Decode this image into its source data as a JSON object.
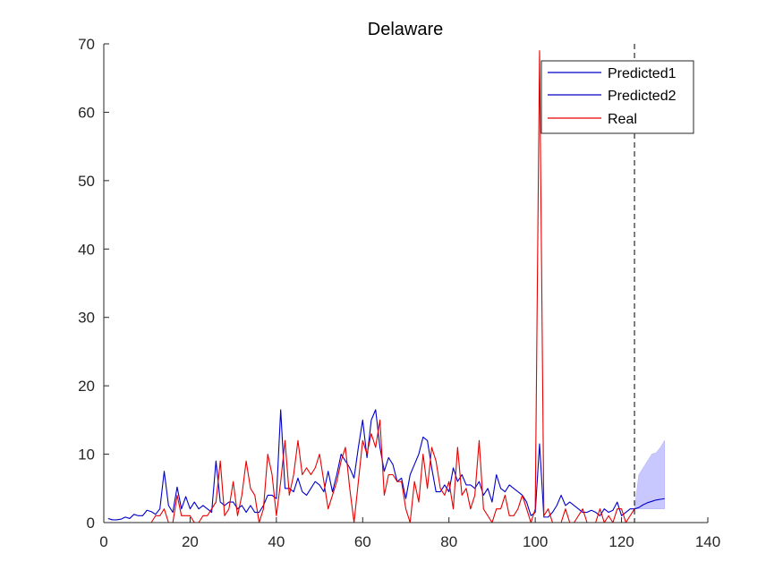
{
  "chart_data": {
    "type": "line",
    "title": "Delaware",
    "xlabel": "",
    "ylabel": "",
    "xlim": [
      0,
      140
    ],
    "ylim": [
      0,
      70
    ],
    "xticks": [
      "0",
      "20",
      "40",
      "60",
      "80",
      "100",
      "120",
      "140"
    ],
    "yticks": [
      "0",
      "10",
      "20",
      "30",
      "40",
      "50",
      "60",
      "70"
    ],
    "grid": false,
    "legend_position": "top-right",
    "legend": [
      "Predicted1",
      "Predicted2",
      "Real"
    ],
    "vertical_marker_x": 123,
    "series": [
      {
        "name": "Predicted1",
        "color": "#0000c8",
        "x": [
          1,
          2,
          3,
          4,
          5,
          6,
          7,
          8,
          9,
          10,
          11,
          12,
          13,
          14,
          15,
          16,
          17,
          18,
          19,
          20,
          21,
          22,
          23,
          24,
          25,
          26,
          27,
          28,
          29,
          30,
          31,
          32,
          33,
          34,
          35,
          36,
          37,
          38,
          39,
          40,
          41,
          42,
          43,
          44,
          45,
          46,
          47,
          48,
          49,
          50,
          51,
          52,
          53,
          54,
          55,
          56,
          57,
          58,
          59,
          60,
          61,
          62,
          63,
          64,
          65,
          66,
          67,
          68,
          69,
          70,
          71,
          72,
          73,
          74,
          75,
          76,
          77,
          78,
          79,
          80,
          81,
          82,
          83,
          84,
          85,
          86,
          87,
          88,
          89,
          90,
          91,
          92,
          93,
          94,
          95,
          96,
          97,
          98,
          99,
          100,
          101,
          102,
          103,
          104,
          105,
          106,
          107,
          108,
          109,
          110,
          111,
          112,
          113,
          114,
          115,
          116,
          117,
          118,
          119,
          120,
          121,
          122,
          123
        ],
        "y": [
          0.6,
          0.4,
          0.4,
          0.5,
          0.8,
          0.6,
          1.2,
          1.0,
          1.0,
          1.8,
          1.6,
          1.2,
          2.0,
          7.5,
          2.5,
          1.5,
          5.2,
          2.0,
          3.8,
          2.0,
          3.0,
          2.0,
          2.5,
          2.0,
          1.5,
          9.0,
          3.0,
          2.5,
          3.0,
          3.0,
          2.0,
          2.5,
          1.5,
          2.5,
          1.5,
          1.5,
          2.5,
          4.0,
          4.0,
          3.5,
          16.5,
          5.0,
          5.0,
          4.5,
          6.5,
          4.5,
          4.0,
          5.0,
          6.0,
          5.5,
          4.5,
          7.5,
          4.5,
          7.0,
          10.0,
          9.0,
          8.0,
          6.5,
          11.0,
          15.0,
          9.5,
          15.0,
          16.5,
          11.0,
          7.5,
          9.5,
          8.5,
          6.0,
          6.5,
          3.5,
          7.0,
          8.5,
          10.0,
          12.5,
          12.0,
          8.0,
          4.5,
          4.5,
          5.5,
          4.5,
          8.0,
          6.0,
          7.0,
          5.5,
          5.5,
          5.0,
          6.0,
          4.0,
          5.0,
          3.0,
          7.0,
          5.0,
          4.5,
          5.5,
          5.0,
          4.5,
          4.0,
          3.0,
          1.0,
          1.5,
          11.5,
          0.8,
          0.8,
          1.5,
          2.5,
          4.0,
          2.5,
          3.0,
          2.5,
          2.0,
          1.5,
          1.5,
          1.8,
          1.5,
          1.0,
          2.0,
          1.5,
          1.8,
          3.0,
          1.0,
          1.5,
          2.0,
          2.0
        ]
      },
      {
        "name": "Predicted2",
        "color": "#0000c8",
        "x": [
          123,
          124,
          125,
          126,
          127,
          128,
          129,
          130
        ],
        "y": [
          2.0,
          2.2,
          2.6,
          2.9,
          3.1,
          3.3,
          3.4,
          3.5
        ],
        "band_upper": [
          2.0,
          7.0,
          8.0,
          9.0,
          10.0,
          10.2,
          11.0,
          12.0
        ],
        "band_lower": [
          2.0,
          2.0,
          2.0,
          2.0,
          2.0,
          2.0,
          2.0,
          2.0
        ]
      },
      {
        "name": "Real",
        "color": "#e60000",
        "x": [
          1,
          2,
          3,
          4,
          5,
          6,
          7,
          8,
          9,
          10,
          11,
          12,
          13,
          14,
          15,
          16,
          17,
          18,
          19,
          20,
          21,
          22,
          23,
          24,
          25,
          26,
          27,
          28,
          29,
          30,
          31,
          32,
          33,
          34,
          35,
          36,
          37,
          38,
          39,
          40,
          41,
          42,
          43,
          44,
          45,
          46,
          47,
          48,
          49,
          50,
          51,
          52,
          53,
          54,
          55,
          56,
          57,
          58,
          59,
          60,
          61,
          62,
          63,
          64,
          65,
          66,
          67,
          68,
          69,
          70,
          71,
          72,
          73,
          74,
          75,
          76,
          77,
          78,
          79,
          80,
          81,
          82,
          83,
          84,
          85,
          86,
          87,
          88,
          89,
          90,
          91,
          92,
          93,
          94,
          95,
          96,
          97,
          98,
          99,
          100,
          101,
          102,
          103,
          104,
          105,
          106,
          107,
          108,
          109,
          110,
          111,
          112,
          113,
          114,
          115,
          116,
          117,
          118,
          119,
          120,
          121,
          122,
          123
        ],
        "y": [
          0,
          0,
          0,
          0,
          0,
          0,
          0,
          0,
          0,
          0,
          0,
          1.0,
          1.0,
          2.0,
          0,
          0,
          4.0,
          1.0,
          1.0,
          1.0,
          0,
          0,
          1.0,
          1.0,
          2.0,
          3.0,
          9.0,
          1.0,
          2.0,
          6.0,
          1.0,
          4.0,
          9.0,
          5.0,
          4.0,
          0,
          2.0,
          10.0,
          7.0,
          1.0,
          6.0,
          12.0,
          4.0,
          7.0,
          12.0,
          7.0,
          8.0,
          7.0,
          8.0,
          10.0,
          6.0,
          2.0,
          4.0,
          6.0,
          9.0,
          11.0,
          5.0,
          0,
          6.0,
          12.0,
          10.0,
          13.0,
          11.0,
          15.0,
          4.0,
          7.0,
          7.0,
          6.0,
          6.0,
          2.0,
          0,
          6.0,
          3.0,
          10.0,
          5.0,
          11.0,
          9.0,
          5.0,
          4.0,
          6.0,
          2.0,
          11.0,
          4.0,
          5.0,
          2.0,
          4.0,
          12.0,
          2.0,
          1.0,
          0,
          2.0,
          2.0,
          4.0,
          1.0,
          1.0,
          2.0,
          4.0,
          2.0,
          0,
          2.0,
          69.0,
          1.0,
          2.0,
          0,
          0,
          0,
          2.0,
          0,
          0,
          1.0,
          2.0,
          0,
          0,
          0,
          2.0,
          0,
          1.0,
          0,
          2.0,
          2.0,
          0,
          1.0,
          2.0
        ]
      }
    ]
  }
}
